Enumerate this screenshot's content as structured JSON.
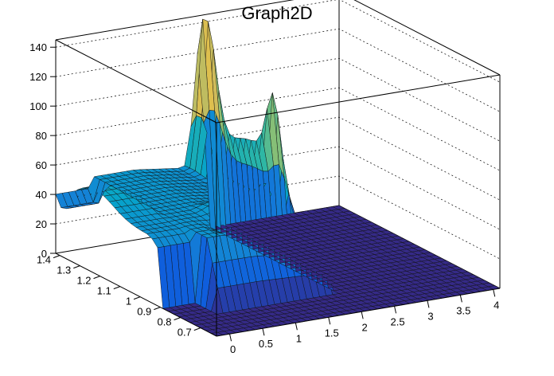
{
  "chart_data": {
    "type": "surface",
    "title": "Graph2D",
    "xlabel": "",
    "ylabel": "",
    "zlabel": "",
    "xlim": [
      -0.2,
      4.1
    ],
    "ylim": [
      0.62,
      1.42
    ],
    "zlim": [
      0,
      145
    ],
    "grid": true,
    "colormap": "kBird",
    "x_ticks": [
      "0",
      "0.5",
      "1",
      "1.5",
      "2",
      "2.5",
      "3",
      "3.5",
      "4"
    ],
    "y_ticks": [
      "0.7",
      "0.8",
      "0.9",
      "1",
      "1.1",
      "1.2",
      "1.3",
      "1.4"
    ],
    "z_ticks": [
      "0",
      "20",
      "40",
      "60",
      "80",
      "100",
      "120",
      "140"
    ],
    "x_tick_values": [
      0,
      0.5,
      1,
      1.5,
      2,
      2.5,
      3,
      3.5,
      4
    ],
    "y_tick_values": [
      0.7,
      0.8,
      0.9,
      1.0,
      1.1,
      1.2,
      1.3,
      1.4
    ],
    "z_tick_values": [
      0,
      20,
      40,
      60,
      80,
      100,
      120,
      140
    ],
    "features": [
      {
        "x": 1.95,
        "y": 1.38,
        "z": 145
      },
      {
        "x": 1.95,
        "y": 1.05,
        "z": 92
      },
      {
        "x": 0.0,
        "y": 1.22,
        "z": 60
      },
      {
        "x": 2.1,
        "y": 0.65,
        "z": 0
      }
    ]
  }
}
